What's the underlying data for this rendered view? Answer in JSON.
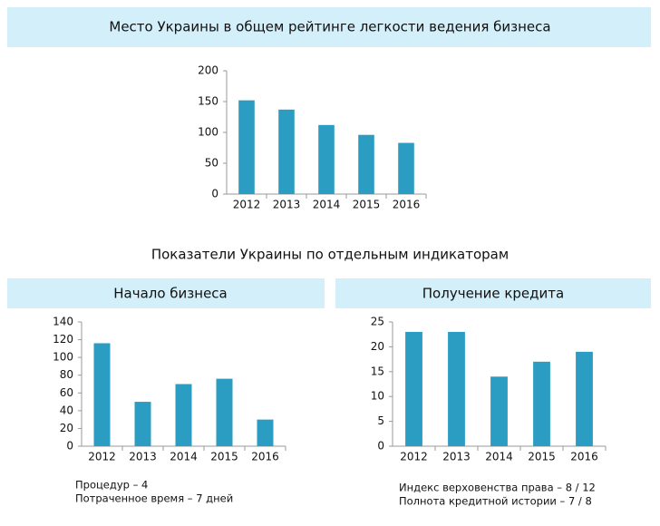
{
  "section_title": "Показатели Украины по отдельным индикаторам",
  "chart_data": [
    {
      "type": "bar",
      "title": "Место Украины в общем рейтинге легкости ведения бизнеса",
      "categories": [
        "2012",
        "2013",
        "2014",
        "2015",
        "2016"
      ],
      "values": [
        152,
        137,
        112,
        96,
        83
      ],
      "color": "#2b9cc2",
      "ylim": [
        0,
        200
      ],
      "yticks": [
        0,
        50,
        100,
        150,
        200
      ]
    },
    {
      "type": "bar",
      "title": "Начало бизнеса",
      "categories": [
        "2012",
        "2013",
        "2014",
        "2015",
        "2016"
      ],
      "values": [
        116,
        50,
        70,
        76,
        30
      ],
      "color": "#2b9cc2",
      "ylim": [
        0,
        140
      ],
      "yticks": [
        0,
        20,
        40,
        60,
        80,
        100,
        120,
        140
      ],
      "annotations": [
        "Процедур – 4",
        "Потраченное время – 7 дней"
      ]
    },
    {
      "type": "bar",
      "title": "Получение кредита",
      "categories": [
        "2012",
        "2013",
        "2014",
        "2015",
        "2016"
      ],
      "values": [
        23,
        23,
        14,
        17,
        19
      ],
      "color": "#2b9cc2",
      "ylim": [
        0,
        25
      ],
      "yticks": [
        0,
        5,
        10,
        15,
        20,
        25
      ],
      "annotations": [
        "Индекс верховенства права – 8 / 12",
        "Полнота кредитной истории – 7 / 8"
      ]
    }
  ]
}
